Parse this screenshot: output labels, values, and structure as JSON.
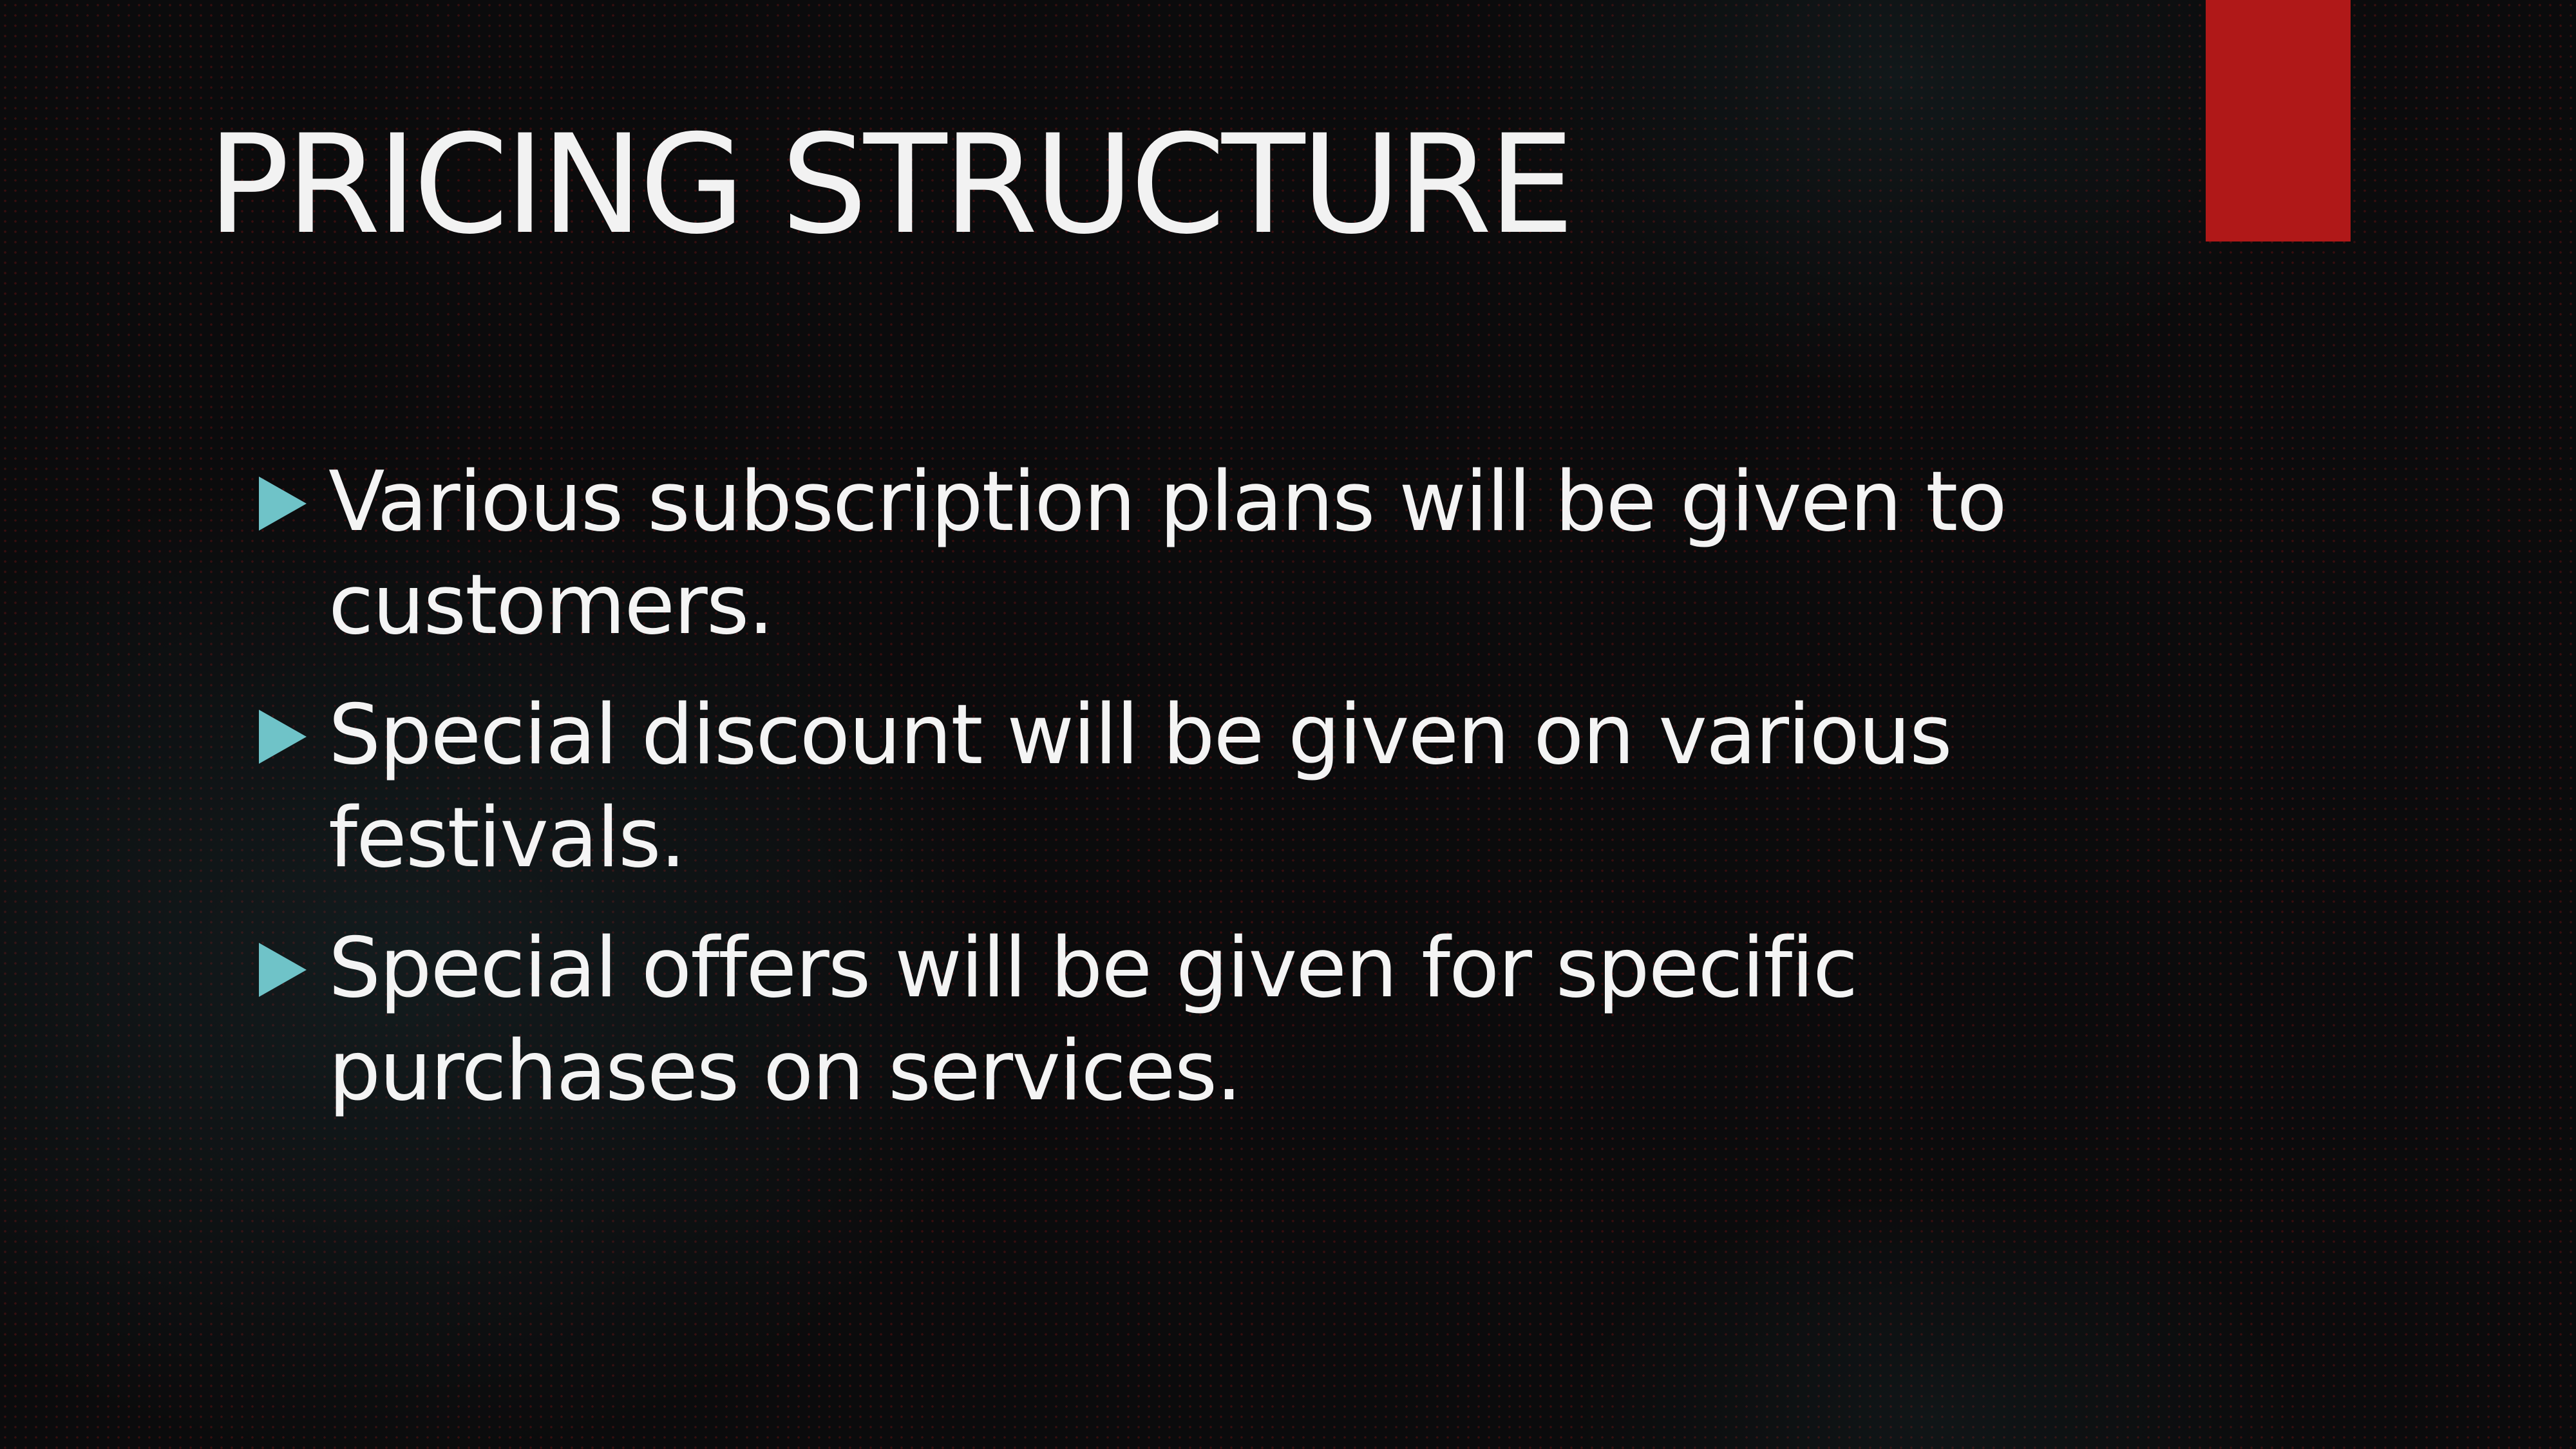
{
  "slide": {
    "title": "PRICING STRUCTURE",
    "accent_color": "#b01818",
    "bullet_color": "#6fc3c8",
    "bullets": [
      {
        "text": "Various subscription plans will be given to customers."
      },
      {
        "text": "Special discount will be given on various festivals."
      },
      {
        "text": "Special offers will be given for specific purchases on services."
      }
    ]
  }
}
